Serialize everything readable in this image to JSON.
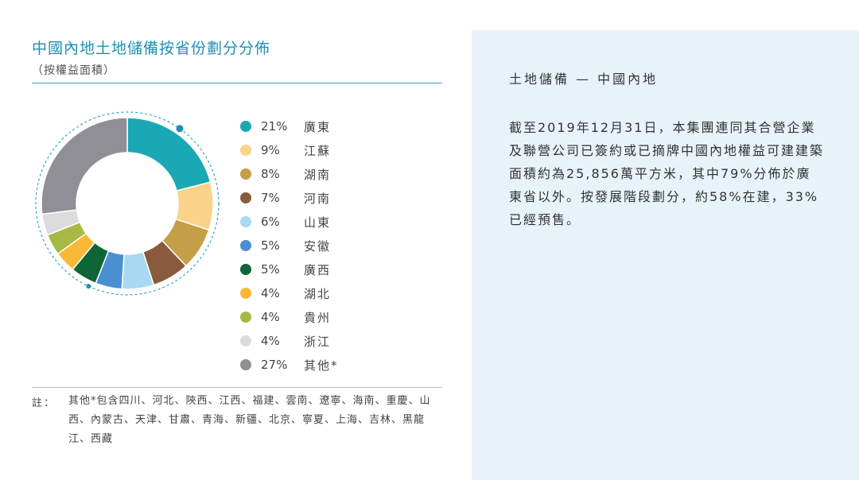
{
  "left": {
    "title": "中國內地土地儲備按省份劃分分佈",
    "subtitle": "（按權益面積）",
    "note_label": "註：",
    "note_text": "其他*包含四川、河北、陝西、江西、福建、雲南、遼寧、海南、重慶、山西、內蒙古、天津、甘肅、青海、新疆、北京、寧夏、上海、吉林、黑龍江、西藏"
  },
  "chart_data": {
    "type": "pie",
    "donut": true,
    "legend_position": "right",
    "slices": [
      {
        "label": "廣東",
        "value": 21,
        "display": "21%",
        "color": "#1aa8b4"
      },
      {
        "label": "江蘇",
        "value": 9,
        "display": "9%",
        "color": "#fcd289"
      },
      {
        "label": "湖南",
        "value": 8,
        "display": "8%",
        "color": "#c59e48"
      },
      {
        "label": "河南",
        "value": 7,
        "display": "7%",
        "color": "#8a5a3c"
      },
      {
        "label": "山東",
        "value": 6,
        "display": "6%",
        "color": "#a8d9f2"
      },
      {
        "label": "安徽",
        "value": 5,
        "display": "5%",
        "color": "#4a8fd0"
      },
      {
        "label": "廣西",
        "value": 5,
        "display": "5%",
        "color": "#0e6636"
      },
      {
        "label": "湖北",
        "value": 4,
        "display": "4%",
        "color": "#f9b835"
      },
      {
        "label": "貴州",
        "value": 4,
        "display": "4%",
        "color": "#a7b944"
      },
      {
        "label": "浙江",
        "value": 4,
        "display": "4%",
        "color": "#dcdcdc"
      },
      {
        "label": "其他*",
        "value": 27,
        "display": "27%",
        "color": "#8f8f95"
      }
    ]
  },
  "panel": {
    "title": "土地儲備 — 中國內地",
    "body": "截至2019年12月31日，本集團連同其合營企業及聯營公司已簽約或已摘牌中國內地權益可建建築面積約為25,856萬平方米，其中79%分佈於廣東省以外。按發展階段劃分，約58%在建，33%已經預售。"
  },
  "colors": {
    "accent": "#1f8fb4",
    "dashed_ring": "#2aa6c7",
    "panel_bg": "#e8f3f9"
  }
}
